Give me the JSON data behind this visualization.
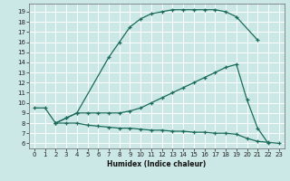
{
  "xlabel": "Humidex (Indice chaleur)",
  "ylabel": "",
  "bg_color": "#cce8e6",
  "line_color": "#1a6b5a",
  "grid_color": "#b0d8d5",
  "xlim": [
    -0.5,
    23.5
  ],
  "ylim": [
    5.5,
    19.8
  ],
  "xticks": [
    0,
    1,
    2,
    3,
    4,
    5,
    6,
    7,
    8,
    9,
    10,
    11,
    12,
    13,
    14,
    15,
    16,
    17,
    18,
    19,
    20,
    21,
    22,
    23
  ],
  "yticks": [
    6,
    7,
    8,
    9,
    10,
    11,
    12,
    13,
    14,
    15,
    16,
    17,
    18,
    19
  ],
  "curve1_x": [
    0,
    1,
    2,
    3,
    4,
    7,
    8,
    9,
    10,
    11,
    12,
    13,
    14,
    15,
    16,
    17,
    18,
    19,
    21
  ],
  "curve1_y": [
    9.5,
    9.5,
    8.0,
    8.5,
    9.0,
    14.5,
    16.0,
    17.5,
    18.3,
    18.8,
    19.0,
    19.2,
    19.2,
    19.2,
    19.2,
    19.2,
    19.0,
    18.5,
    16.2
  ],
  "curve2_x": [
    2,
    3,
    4,
    5,
    6,
    7,
    8,
    9,
    10,
    11,
    12,
    13,
    14,
    15,
    16,
    17,
    18,
    19,
    20,
    21,
    22
  ],
  "curve2_y": [
    8.0,
    8.5,
    9.0,
    9.0,
    9.0,
    9.0,
    9.0,
    9.2,
    9.5,
    10.0,
    10.5,
    11.0,
    11.5,
    12.0,
    12.5,
    13.0,
    13.5,
    13.8,
    10.3,
    7.5,
    6.0
  ],
  "curve3_x": [
    2,
    3,
    4,
    5,
    6,
    7,
    8,
    9,
    10,
    11,
    12,
    13,
    14,
    15,
    16,
    17,
    18,
    19,
    20,
    21,
    22,
    23
  ],
  "curve3_y": [
    8.0,
    8.0,
    8.0,
    7.8,
    7.7,
    7.6,
    7.5,
    7.5,
    7.4,
    7.3,
    7.3,
    7.2,
    7.2,
    7.1,
    7.1,
    7.0,
    7.0,
    6.9,
    6.5,
    6.2,
    6.1,
    6.0
  ],
  "tick_fontsize": 5,
  "xlabel_fontsize": 5.5
}
